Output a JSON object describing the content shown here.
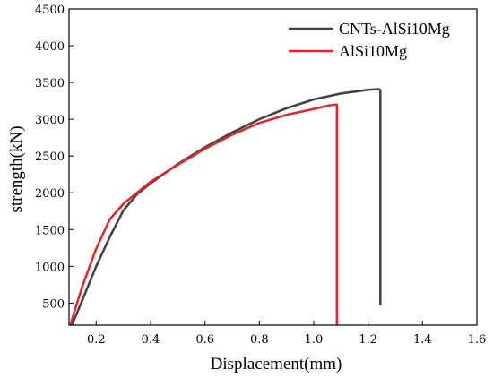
{
  "chart_data": {
    "type": "line",
    "xlabel": "Displacement(mm)",
    "ylabel": "strength(kN)",
    "xlim": [
      0.1,
      1.6
    ],
    "ylim": [
      200,
      4500
    ],
    "xticks": [
      0.2,
      0.4,
      0.6,
      0.8,
      1.0,
      1.2,
      1.4,
      1.6
    ],
    "xtick_labels": [
      "0.2",
      "0.4",
      "0.6",
      "0.8",
      "1.0",
      "1.2",
      "1.4",
      "1.6"
    ],
    "yticks": [
      500,
      1000,
      1500,
      2000,
      2500,
      3000,
      3500,
      4000,
      4500
    ],
    "ytick_labels": [
      "500",
      "1000",
      "1500",
      "2000",
      "2500",
      "3000",
      "3500",
      "4000",
      "4500"
    ],
    "grid": false,
    "legend_position": "top-right",
    "series": [
      {
        "name": "CNTs-AlSi10Mg",
        "color": "#404040",
        "points": [
          [
            0.11,
            200
          ],
          [
            0.13,
            370
          ],
          [
            0.16,
            640
          ],
          [
            0.2,
            1000
          ],
          [
            0.25,
            1400
          ],
          [
            0.3,
            1760
          ],
          [
            0.35,
            1980
          ],
          [
            0.4,
            2130
          ],
          [
            0.5,
            2390
          ],
          [
            0.6,
            2620
          ],
          [
            0.7,
            2820
          ],
          [
            0.8,
            3000
          ],
          [
            0.9,
            3150
          ],
          [
            1.0,
            3270
          ],
          [
            1.1,
            3350
          ],
          [
            1.2,
            3400
          ],
          [
            1.24,
            3410
          ],
          [
            1.245,
            3395
          ],
          [
            1.245,
            470
          ]
        ]
      },
      {
        "name": "AlSi10Mg",
        "color": "#e0262a",
        "points": [
          [
            0.105,
            200
          ],
          [
            0.12,
            390
          ],
          [
            0.15,
            740
          ],
          [
            0.2,
            1240
          ],
          [
            0.25,
            1640
          ],
          [
            0.3,
            1850
          ],
          [
            0.35,
            2000
          ],
          [
            0.4,
            2150
          ],
          [
            0.5,
            2380
          ],
          [
            0.6,
            2600
          ],
          [
            0.7,
            2790
          ],
          [
            0.8,
            2950
          ],
          [
            0.9,
            3060
          ],
          [
            1.0,
            3140
          ],
          [
            1.06,
            3190
          ],
          [
            1.085,
            3200
          ],
          [
            1.085,
            200
          ]
        ]
      }
    ]
  }
}
